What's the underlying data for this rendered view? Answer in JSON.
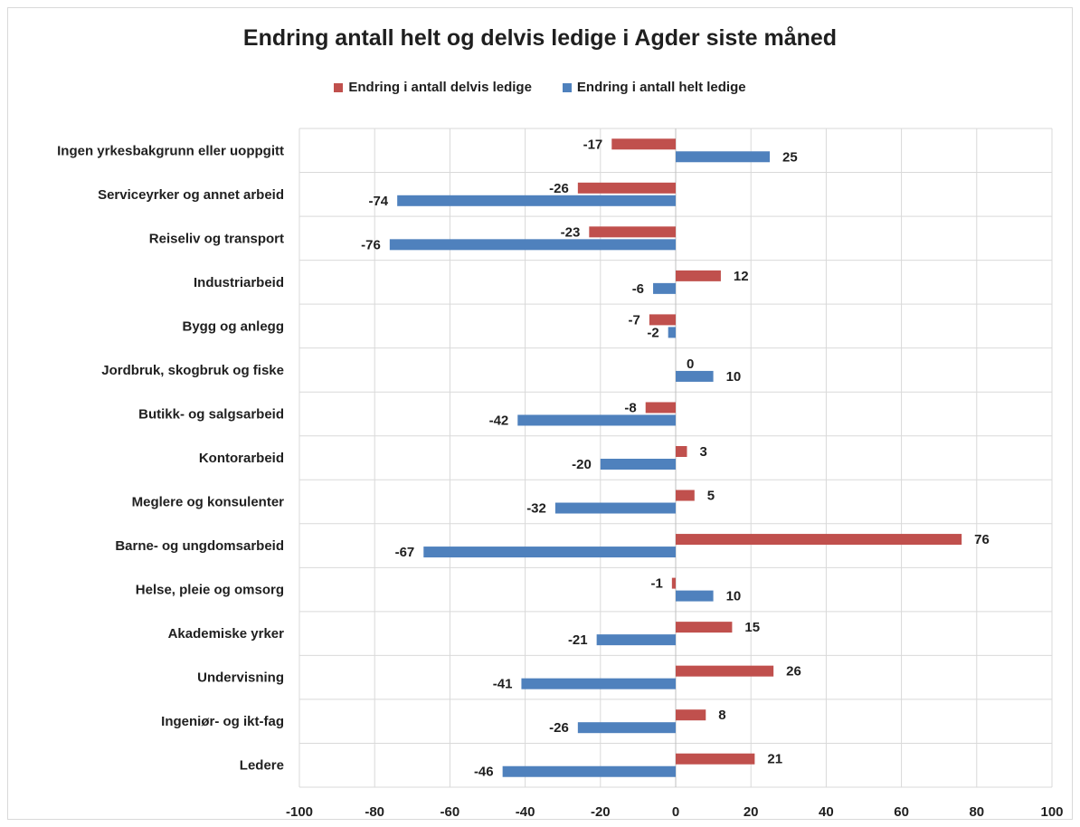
{
  "chart_data": {
    "type": "bar",
    "orientation": "horizontal",
    "title": "Endring antall helt og delvis ledige i Agder siste måned",
    "categories": [
      "Ingen yrkesbakgrunn eller uoppgitt",
      "Serviceyrker og annet arbeid",
      "Reiseliv og transport",
      "Industriarbeid",
      "Bygg og anlegg",
      "Jordbruk, skogbruk og fiske",
      "Butikk- og salgsarbeid",
      "Kontorarbeid",
      "Meglere og konsulenter",
      "Barne- og ungdomsarbeid",
      "Helse, pleie og omsorg",
      "Akademiske yrker",
      "Undervisning",
      "Ingeniør- og ikt-fag",
      "Ledere"
    ],
    "series": [
      {
        "name": "Endring i antall delvis ledige",
        "color": "#c0504d",
        "values": [
          -17,
          -26,
          -23,
          12,
          -7,
          0,
          -8,
          3,
          5,
          76,
          -1,
          15,
          26,
          8,
          21
        ]
      },
      {
        "name": "Endring i antall helt ledige",
        "color": "#4f81bd",
        "values": [
          25,
          -74,
          -76,
          -6,
          -2,
          10,
          -42,
          -20,
          -32,
          -67,
          10,
          -21,
          -41,
          -26,
          -46
        ]
      }
    ],
    "xlim": [
      -100,
      100
    ],
    "xticks": [
      -100,
      -80,
      -60,
      -40,
      -20,
      0,
      20,
      40,
      60,
      80,
      100
    ],
    "grid": true,
    "legend_position": "top",
    "data_labels": true
  }
}
